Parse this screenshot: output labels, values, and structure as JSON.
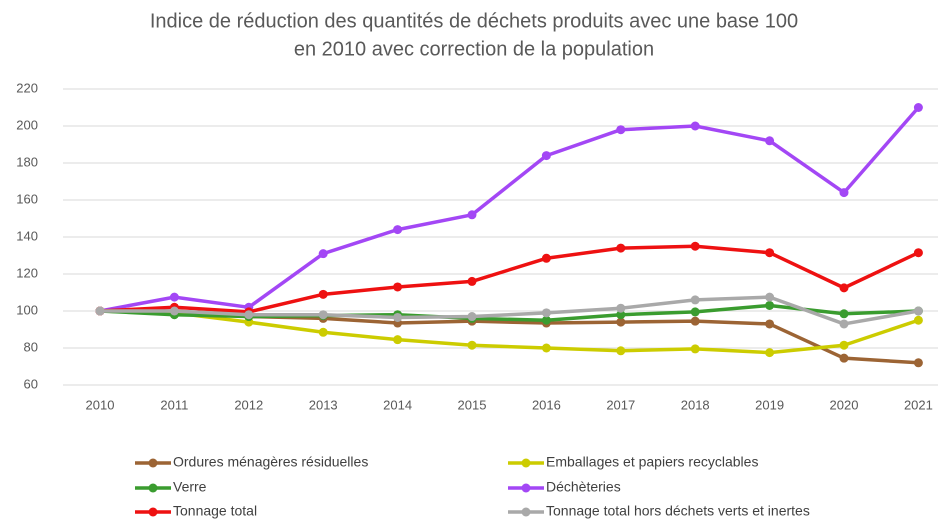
{
  "chart_data": {
    "type": "line",
    "title": [
      "Indice de réduction des quantités de déchets produits avec une base 100",
      "en 2010 avec correction de la population"
    ],
    "categories": [
      "2010",
      "2011",
      "2012",
      "2013",
      "2014",
      "2015",
      "2016",
      "2017",
      "2018",
      "2019",
      "2020",
      "2021"
    ],
    "ylim": [
      60,
      220
    ],
    "yticks": [
      60,
      80,
      100,
      120,
      140,
      160,
      180,
      200,
      220
    ],
    "grid": true,
    "legend": "bottom",
    "series": [
      {
        "name": "Ordures ménagères résiduelles",
        "color": "#9c6434",
        "values": [
          100,
          99,
          97,
          96,
          93.5,
          94.5,
          93.5,
          94,
          94.5,
          93,
          74.5,
          72
        ]
      },
      {
        "name": "Emballages et papiers recyclables",
        "color": "#cccc00",
        "values": [
          100,
          99,
          94,
          88.5,
          84.5,
          81.5,
          80,
          78.5,
          79.5,
          77.5,
          81.5,
          95
        ]
      },
      {
        "name": "Verre",
        "color": "#3a9c2f",
        "values": [
          100,
          98,
          97,
          97.5,
          98,
          96,
          95,
          98,
          99.5,
          103,
          98.5,
          100
        ]
      },
      {
        "name": "Déchèteries",
        "color": "#a347f5",
        "values": [
          100,
          107.5,
          102,
          131,
          144,
          152,
          184,
          198,
          200,
          192,
          164,
          210
        ]
      },
      {
        "name": "Tonnage total",
        "color": "#ee1111",
        "values": [
          100,
          102,
          99.5,
          109,
          113,
          116,
          128.5,
          134,
          135,
          131.5,
          112.5,
          131.5
        ]
      },
      {
        "name": "Tonnage total hors déchets verts et inertes",
        "color": "#a9a9a9",
        "values": [
          100,
          100,
          98,
          98,
          96.5,
          97,
          99,
          101.5,
          106,
          107.5,
          93,
          100
        ]
      }
    ]
  }
}
